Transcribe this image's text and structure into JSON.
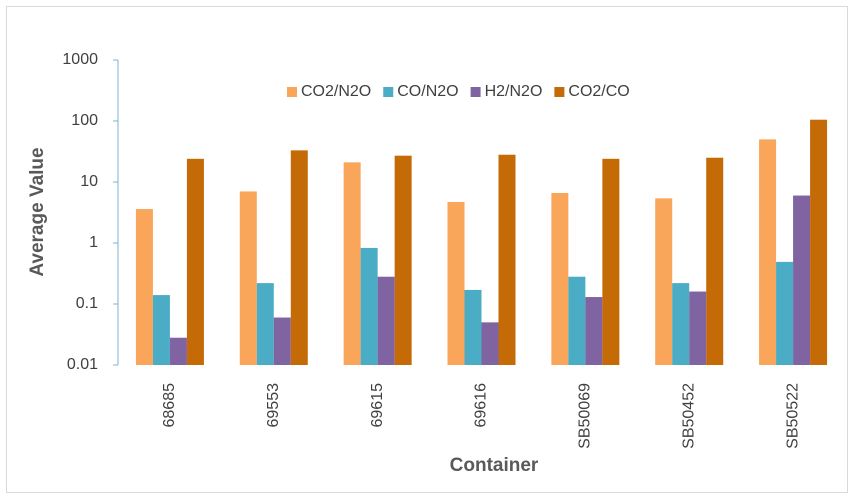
{
  "chart_data": {
    "type": "bar",
    "x_label": "Container",
    "y_label": "Average Value",
    "categories": [
      "68685",
      "69553",
      "69615",
      "69616",
      "SB50069",
      "SB50452",
      "SB50522"
    ],
    "series": [
      {
        "name": "CO2/N2O",
        "color": "#F9A65A",
        "values": [
          3.6,
          7,
          21,
          4.7,
          6.6,
          5.4,
          50
        ]
      },
      {
        "name": "CO/N2O",
        "color": "#4BACC6",
        "values": [
          0.14,
          0.22,
          0.83,
          0.17,
          0.28,
          0.22,
          0.49
        ]
      },
      {
        "name": "H2/N2O",
        "color": "#8064A2",
        "values": [
          0.028,
          0.06,
          0.28,
          0.05,
          0.13,
          0.16,
          6
        ]
      },
      {
        "name": "CO2/CO",
        "color": "#C46A06",
        "values": [
          24,
          33,
          27,
          28,
          24,
          25,
          105
        ]
      }
    ],
    "ylim": [
      0.01,
      1000
    ],
    "yticks": [
      0.01,
      0.1,
      1,
      10,
      100,
      1000
    ],
    "log_scale": true,
    "grid": false,
    "legend": "top"
  }
}
